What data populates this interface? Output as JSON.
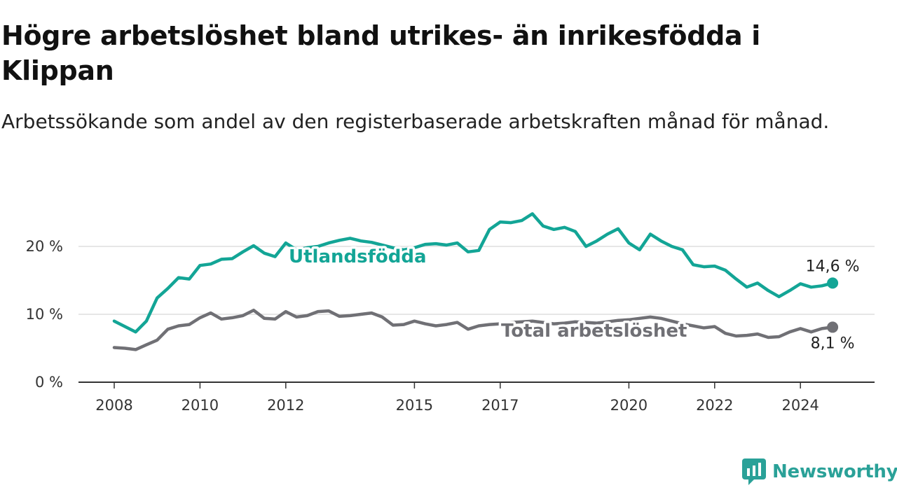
{
  "title": "Högre arbetslöshet bland utrikes- än inrikesfödda i Klippan",
  "subtitle": "Arbetssökande som andel av den registerbaserade arbetskraften månad för månad.",
  "brand": {
    "name": "Newsworthy",
    "icon": "newsworthy-logo-icon"
  },
  "colors": {
    "accent": "#13a596",
    "grey": "#707075",
    "brand": "#2aa198"
  },
  "chart_data": {
    "type": "line",
    "title": "Högre arbetslöshet bland utrikes- än inrikesfödda i Klippan",
    "subtitle": "Arbetssökande som andel av den registerbaserade arbetskraften månad för månad.",
    "x_ticks": [
      "2008",
      "2010",
      "2012",
      "2015",
      "2017",
      "2020",
      "2022",
      "2024"
    ],
    "y_ticks": [
      "0 %",
      "10 %",
      "20 %"
    ],
    "ylim": [
      0,
      25
    ],
    "grid": true,
    "series": [
      {
        "name": "Utlandsfödda",
        "color": "#13a596",
        "end_label": "14,6 %",
        "points": [
          [
            "2008-01",
            9.0
          ],
          [
            "2008-04",
            8.2
          ],
          [
            "2008-07",
            7.4
          ],
          [
            "2008-10",
            9.0
          ],
          [
            "2009-01",
            12.4
          ],
          [
            "2009-04",
            13.8
          ],
          [
            "2009-07",
            15.4
          ],
          [
            "2009-10",
            15.2
          ],
          [
            "2010-01",
            17.2
          ],
          [
            "2010-04",
            17.4
          ],
          [
            "2010-07",
            18.1
          ],
          [
            "2010-10",
            18.2
          ],
          [
            "2011-01",
            19.2
          ],
          [
            "2011-04",
            20.1
          ],
          [
            "2011-07",
            19.0
          ],
          [
            "2011-10",
            18.5
          ],
          [
            "2012-01",
            20.5
          ],
          [
            "2012-04",
            19.5
          ],
          [
            "2012-07",
            19.8
          ],
          [
            "2012-10",
            20.0
          ],
          [
            "2013-01",
            20.5
          ],
          [
            "2013-04",
            20.9
          ],
          [
            "2013-07",
            21.2
          ],
          [
            "2013-10",
            20.8
          ],
          [
            "2014-01",
            20.6
          ],
          [
            "2014-04",
            20.2
          ],
          [
            "2014-07",
            19.8
          ],
          [
            "2014-10",
            19.5
          ],
          [
            "2015-01",
            19.8
          ],
          [
            "2015-04",
            20.3
          ],
          [
            "2015-07",
            20.4
          ],
          [
            "2015-10",
            20.2
          ],
          [
            "2016-01",
            20.5
          ],
          [
            "2016-04",
            19.2
          ],
          [
            "2016-07",
            19.4
          ],
          [
            "2016-10",
            22.5
          ],
          [
            "2017-01",
            23.6
          ],
          [
            "2017-04",
            23.5
          ],
          [
            "2017-07",
            23.8
          ],
          [
            "2017-10",
            24.8
          ],
          [
            "2018-01",
            23.0
          ],
          [
            "2018-04",
            22.5
          ],
          [
            "2018-07",
            22.8
          ],
          [
            "2018-10",
            22.2
          ],
          [
            "2019-01",
            20.0
          ],
          [
            "2019-04",
            20.8
          ],
          [
            "2019-07",
            21.8
          ],
          [
            "2019-10",
            22.6
          ],
          [
            "2020-01",
            20.5
          ],
          [
            "2020-04",
            19.5
          ],
          [
            "2020-07",
            21.8
          ],
          [
            "2020-10",
            20.8
          ],
          [
            "2021-01",
            20.0
          ],
          [
            "2021-04",
            19.5
          ],
          [
            "2021-07",
            17.3
          ],
          [
            "2021-10",
            17.0
          ],
          [
            "2022-01",
            17.1
          ],
          [
            "2022-04",
            16.5
          ],
          [
            "2022-07",
            15.2
          ],
          [
            "2022-10",
            14.0
          ],
          [
            "2023-01",
            14.6
          ],
          [
            "2023-04",
            13.5
          ],
          [
            "2023-07",
            12.6
          ],
          [
            "2023-10",
            13.5
          ],
          [
            "2024-01",
            14.5
          ],
          [
            "2024-04",
            14.0
          ],
          [
            "2024-07",
            14.2
          ],
          [
            "2024-10",
            14.6
          ]
        ]
      },
      {
        "name": "Total arbetslöshet",
        "color": "#707075",
        "end_label": "8,1 %",
        "points": [
          [
            "2008-01",
            5.1
          ],
          [
            "2008-04",
            5.0
          ],
          [
            "2008-07",
            4.8
          ],
          [
            "2008-10",
            5.5
          ],
          [
            "2009-01",
            6.2
          ],
          [
            "2009-04",
            7.8
          ],
          [
            "2009-07",
            8.3
          ],
          [
            "2009-10",
            8.5
          ],
          [
            "2010-01",
            9.5
          ],
          [
            "2010-04",
            10.2
          ],
          [
            "2010-07",
            9.3
          ],
          [
            "2010-10",
            9.5
          ],
          [
            "2011-01",
            9.8
          ],
          [
            "2011-04",
            10.6
          ],
          [
            "2011-07",
            9.4
          ],
          [
            "2011-10",
            9.3
          ],
          [
            "2012-01",
            10.4
          ],
          [
            "2012-04",
            9.6
          ],
          [
            "2012-07",
            9.8
          ],
          [
            "2012-10",
            10.4
          ],
          [
            "2013-01",
            10.5
          ],
          [
            "2013-04",
            9.7
          ],
          [
            "2013-07",
            9.8
          ],
          [
            "2013-10",
            10.0
          ],
          [
            "2014-01",
            10.2
          ],
          [
            "2014-04",
            9.6
          ],
          [
            "2014-07",
            8.4
          ],
          [
            "2014-10",
            8.5
          ],
          [
            "2015-01",
            9.0
          ],
          [
            "2015-04",
            8.6
          ],
          [
            "2015-07",
            8.3
          ],
          [
            "2015-10",
            8.5
          ],
          [
            "2016-01",
            8.8
          ],
          [
            "2016-04",
            7.8
          ],
          [
            "2016-07",
            8.3
          ],
          [
            "2016-10",
            8.5
          ],
          [
            "2017-01",
            8.6
          ],
          [
            "2017-04",
            8.8
          ],
          [
            "2017-07",
            8.9
          ],
          [
            "2017-10",
            9.0
          ],
          [
            "2018-01",
            8.8
          ],
          [
            "2018-04",
            8.6
          ],
          [
            "2018-07",
            8.7
          ],
          [
            "2018-10",
            8.9
          ],
          [
            "2019-01",
            8.8
          ],
          [
            "2019-04",
            8.7
          ],
          [
            "2019-07",
            8.9
          ],
          [
            "2019-10",
            9.1
          ],
          [
            "2020-01",
            9.2
          ],
          [
            "2020-04",
            9.4
          ],
          [
            "2020-07",
            9.6
          ],
          [
            "2020-10",
            9.4
          ],
          [
            "2021-01",
            9.0
          ],
          [
            "2021-04",
            8.6
          ],
          [
            "2021-07",
            8.3
          ],
          [
            "2021-10",
            8.0
          ],
          [
            "2022-01",
            8.2
          ],
          [
            "2022-04",
            7.2
          ],
          [
            "2022-07",
            6.8
          ],
          [
            "2022-10",
            6.9
          ],
          [
            "2023-01",
            7.1
          ],
          [
            "2023-04",
            6.6
          ],
          [
            "2023-07",
            6.7
          ],
          [
            "2023-10",
            7.4
          ],
          [
            "2024-01",
            7.9
          ],
          [
            "2024-04",
            7.4
          ],
          [
            "2024-07",
            7.9
          ],
          [
            "2024-10",
            8.1
          ]
        ]
      }
    ]
  }
}
